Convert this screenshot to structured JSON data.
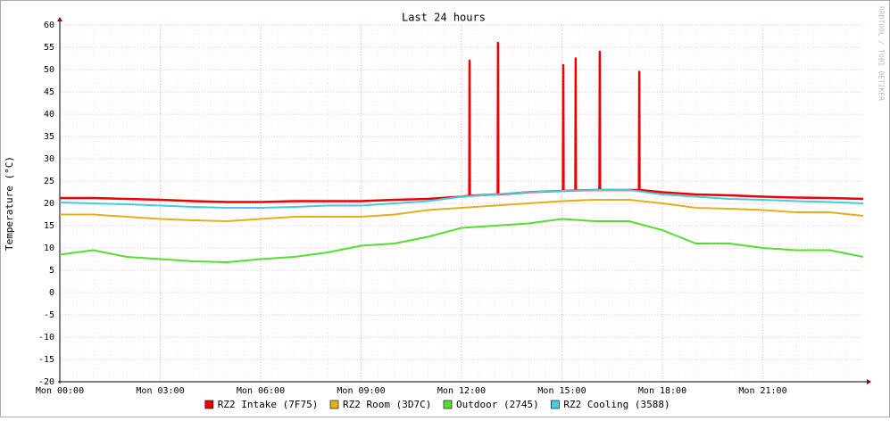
{
  "chart_data": {
    "type": "line",
    "title": "Last 24 hours",
    "y_label": "Temperature (°C)",
    "watermark": "RRDTOOL / TOBI OETIKER",
    "xlim": [
      0,
      24
    ],
    "xticks": [
      {
        "value": 0,
        "label": "Mon 00:00"
      },
      {
        "value": 3,
        "label": "Mon 03:00"
      },
      {
        "value": 6,
        "label": "Mon 06:00"
      },
      {
        "value": 9,
        "label": "Mon 09:00"
      },
      {
        "value": 12,
        "label": "Mon 12:00"
      },
      {
        "value": 15,
        "label": "Mon 15:00"
      },
      {
        "value": 18,
        "label": "Mon 18:00"
      },
      {
        "value": 21,
        "label": "Mon 21:00"
      }
    ],
    "ylim": [
      -20,
      60
    ],
    "yticks": [
      -20,
      -15,
      -10,
      -5,
      0,
      5,
      10,
      15,
      20,
      25,
      30,
      35,
      40,
      45,
      50,
      55,
      60
    ],
    "grid": true,
    "x": [
      0,
      1,
      2,
      3,
      4,
      5,
      6,
      7,
      8,
      9,
      10,
      11,
      12,
      13,
      14,
      15,
      16,
      17,
      18,
      19,
      20,
      21,
      22,
      23,
      24
    ],
    "series": [
      {
        "name": "RZ2 Intake (7F75)",
        "color": "#ee0000",
        "x": [
          0,
          1,
          2,
          3,
          4,
          5,
          6,
          7,
          8,
          9,
          10,
          11,
          12,
          12.23,
          12.24,
          12.25,
          13,
          13.08,
          13.09,
          13.1,
          14,
          15,
          15.03,
          15.04,
          15.05,
          15.4,
          15.41,
          15.42,
          16,
          16.12,
          16.13,
          16.14,
          17,
          17.3,
          17.31,
          17.32,
          18,
          19,
          20,
          21,
          22,
          23,
          24
        ],
        "values": [
          21.2,
          21.2,
          21,
          20.8,
          20.5,
          20.3,
          20.3,
          20.5,
          20.5,
          20.5,
          20.8,
          21,
          21.5,
          21.7,
          52,
          21.7,
          22,
          22,
          56,
          22,
          22.5,
          22.8,
          22.8,
          51,
          22.8,
          22.9,
          52.5,
          22.9,
          23,
          23,
          54,
          23,
          23,
          23,
          49.5,
          23,
          22.5,
          22,
          21.8,
          21.5,
          21.3,
          21.2,
          21
        ]
      },
      {
        "name": "RZ2 Room (3D7C)",
        "color": "#e0b020",
        "values": [
          17.5,
          17.5,
          17,
          16.5,
          16.2,
          16,
          16.5,
          17,
          17,
          17,
          17.5,
          18.5,
          19,
          19.5,
          20,
          20.5,
          20.8,
          20.8,
          20,
          19,
          18.8,
          18.5,
          18,
          18,
          17.2
        ]
      },
      {
        "name": "Outdoor (2745)",
        "color": "#55dd33",
        "values": [
          8.5,
          9.5,
          8,
          7.5,
          7,
          6.8,
          7.5,
          8,
          9,
          10.5,
          11,
          12.5,
          14.5,
          15,
          15.5,
          16.5,
          16,
          16,
          14,
          11,
          11,
          10,
          9.5,
          9.5,
          8
        ]
      },
      {
        "name": "RZ2 Cooling (3588)",
        "color": "#44ccdd",
        "values": [
          20.2,
          20,
          19.8,
          19.5,
          19.2,
          19,
          19,
          19.2,
          19.5,
          19.5,
          20,
          20.5,
          21.5,
          22,
          22.5,
          22.8,
          23,
          23,
          22,
          21.5,
          21,
          20.8,
          20.5,
          20.3,
          20
        ]
      }
    ]
  }
}
